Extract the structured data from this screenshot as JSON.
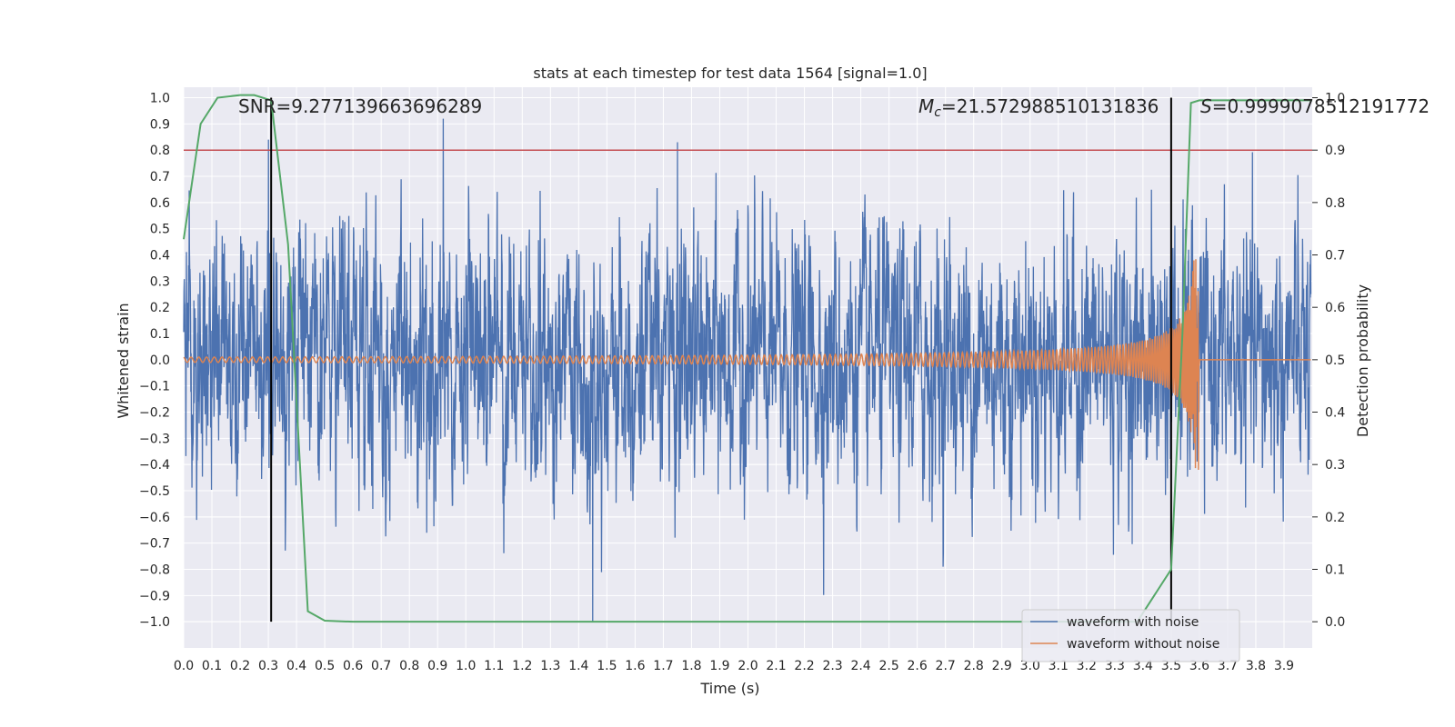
{
  "chart_data": {
    "type": "line",
    "title": "stats at each timestep for test data 1564 [signal=1.0]",
    "xlabel": "Time (s)",
    "ylabel": "Whitened strain",
    "y2label": "Detection probability",
    "xlim": [
      0.0,
      4.0
    ],
    "ylim": [
      -1.1,
      1.04
    ],
    "y2lim": [
      -0.05,
      1.02
    ],
    "xticks": [
      0.0,
      0.1,
      0.2,
      0.3,
      0.4,
      0.5,
      0.6,
      0.7,
      0.8,
      0.9,
      1.0,
      1.1,
      1.2,
      1.3,
      1.4,
      1.5,
      1.6,
      1.7,
      1.8,
      1.9,
      2.0,
      2.1,
      2.2,
      2.3,
      2.4,
      2.5,
      2.6,
      2.7,
      2.8,
      2.9,
      3.0,
      3.1,
      3.2,
      3.3,
      3.4,
      3.5,
      3.6,
      3.7,
      3.8,
      3.9
    ],
    "yticks": [
      1.0,
      0.9,
      0.8,
      0.7,
      0.6,
      0.5,
      0.4,
      0.3,
      0.2,
      0.1,
      0.0,
      -0.1,
      -0.2,
      -0.3,
      -0.4,
      -0.5,
      -0.6,
      -0.7,
      -0.8,
      -0.9,
      -1.0
    ],
    "y2ticks": [
      1.0,
      0.9,
      0.8,
      0.7,
      0.6,
      0.5,
      0.4,
      0.3,
      0.2,
      0.1,
      0.0
    ],
    "grid": true,
    "legend_position": "bottom-right",
    "series": [
      {
        "name": "waveform with noise",
        "color": "#4c72b0",
        "description_values": "noise with amplitude ~0.3, peaks near 0.92 at t=0.92 s and -1.0 at t=1.45 s"
      },
      {
        "name": "waveform without noise",
        "color": "#dd8452",
        "chirp": {
          "amplitude_start": 0.01,
          "amplitude_peak": 0.42,
          "merger_time": 3.6,
          "end_value": 0.0
        }
      },
      {
        "name": "",
        "color": "#55a868",
        "axis": "right",
        "x": [
          0.0,
          0.06,
          0.12,
          0.2,
          0.25,
          0.31,
          0.37,
          0.44,
          0.5,
          0.6,
          1.0,
          2.0,
          3.0,
          3.38,
          3.5,
          3.54,
          3.57,
          3.6,
          4.0
        ],
        "y": [
          0.73,
          0.95,
          1.0,
          1.005,
          1.005,
          0.995,
          0.72,
          0.02,
          0.002,
          0.0,
          0.0,
          0.0,
          0.0,
          0.0,
          0.1,
          0.55,
          0.99,
          0.995,
          0.995
        ]
      }
    ],
    "threshold": {
      "value": 0.9,
      "axis": "right",
      "color": "#c44e52"
    },
    "vlines": [
      0.31,
      3.5
    ],
    "annotations": [
      {
        "id": "snr",
        "text": "SNR=9.277139663696289",
        "x": 0.2
      },
      {
        "id": "mc",
        "text_prefix": "M",
        "text_sub": "c",
        "text_rest": "=21.572988510131836",
        "x": 2.6
      },
      {
        "id": "s",
        "text_prefix": "S",
        "text_rest": "=0.9999078512191772",
        "x": 3.4
      }
    ]
  }
}
